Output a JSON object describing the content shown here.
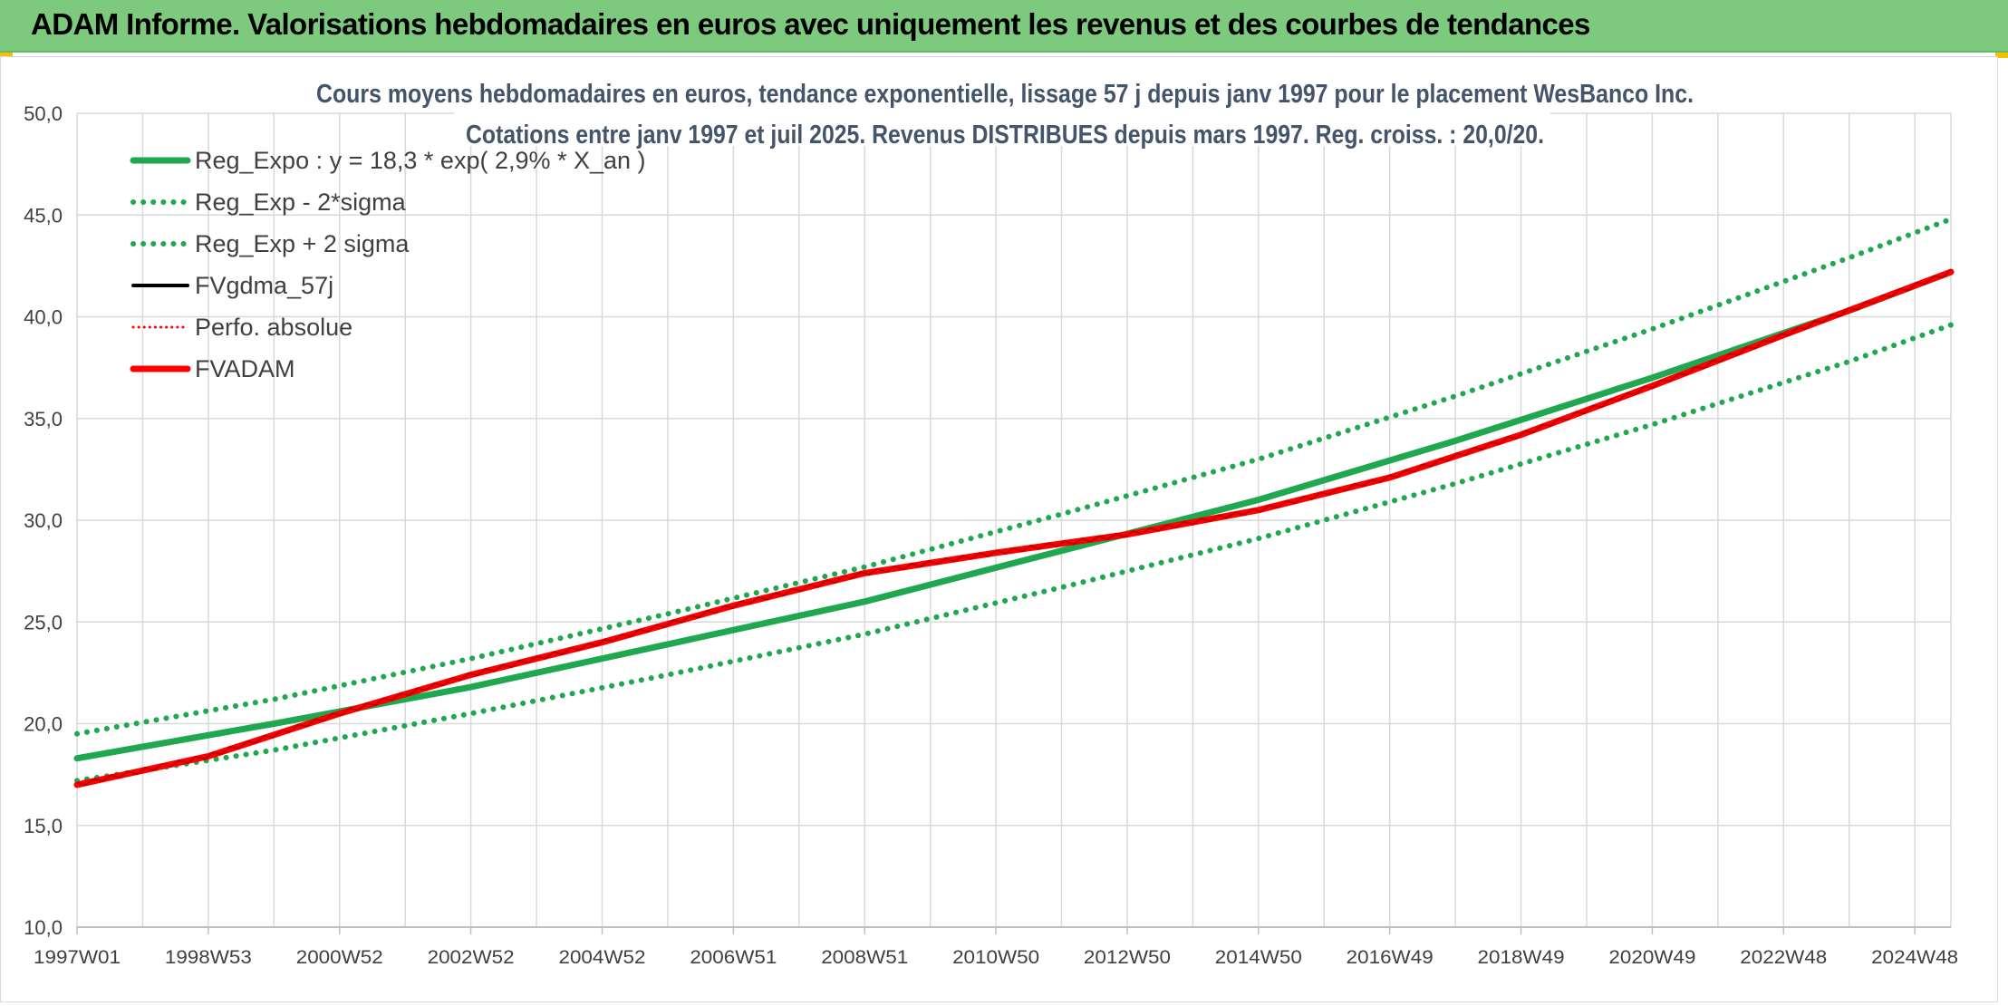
{
  "banner": {
    "title": "ADAM Informe. Valorisations hebdomadaires en euros avec uniquement les revenus et des courbes de tendances"
  },
  "colors": {
    "banner_bg": "#7dc97d",
    "reg_green": "#1fa84f",
    "red": "#ff0000",
    "black": "#000000",
    "grid": "#d9d9d9",
    "title_text": "#44546a",
    "axis_text": "#404040"
  },
  "chart_data": {
    "type": "line",
    "title_line1": "Cours moyens hebdomadaires en euros, tendance exponentielle, lissage 57 j depuis janv 1997 pour le placement WesBanco Inc.",
    "title_line2": "Cotations entre janv 1997 et juil 2025. Revenus DISTRIBUES depuis mars 1997. Reg. croiss. : 20,0/20.",
    "xlabel": "",
    "ylabel": "",
    "x_range": [
      1997.0,
      2025.55
    ],
    "ylim": [
      10,
      50
    ],
    "y_ticks": [
      "10,0",
      "15,0",
      "20,0",
      "25,0",
      "30,0",
      "35,0",
      "40,0",
      "45,0",
      "50,0"
    ],
    "x_ticks": [
      {
        "label": "1997W01",
        "year": 1997.0
      },
      {
        "label": "1998W53",
        "year": 1999.0
      },
      {
        "label": "2000W52",
        "year": 2001.0
      },
      {
        "label": "2002W52",
        "year": 2003.0
      },
      {
        "label": "2004W52",
        "year": 2005.0
      },
      {
        "label": "2006W51",
        "year": 2007.0
      },
      {
        "label": "2008W51",
        "year": 2009.0
      },
      {
        "label": "2010W50",
        "year": 2011.0
      },
      {
        "label": "2012W50",
        "year": 2013.0
      },
      {
        "label": "2014W50",
        "year": 2015.0
      },
      {
        "label": "2016W49",
        "year": 2017.0
      },
      {
        "label": "2018W49",
        "year": 2019.0
      },
      {
        "label": "2020W49",
        "year": 2021.0
      },
      {
        "label": "2022W48",
        "year": 2023.0
      },
      {
        "label": "2024W48",
        "year": 2025.0
      }
    ],
    "grid": true,
    "legend_position": "top-left",
    "legend": [
      {
        "label": "Reg_Expo : y = 18,3 * exp( 2,9% *  X_an )",
        "color": "#1fa84f",
        "style": "solid-thick"
      },
      {
        "label": "Reg_Exp - 2*sigma",
        "color": "#1fa84f",
        "style": "dotted"
      },
      {
        "label": "Reg_Exp + 2 sigma",
        "color": "#1fa84f",
        "style": "dotted"
      },
      {
        "label": "FVgdma_57j",
        "color": "#000000",
        "style": "solid"
      },
      {
        "label": "Perfo. absolue",
        "color": "#ff0000",
        "style": "dotted-thin"
      },
      {
        "label": "FVADAM",
        "color": "#ff0000",
        "style": "solid-thick"
      }
    ],
    "series": [
      {
        "name": "Reg_Expo : y = 18,3 * exp( 2,9% *  X_an )",
        "x": [
          1997.0,
          2000.0,
          2003.0,
          2006.0,
          2009.0,
          2012.0,
          2015.0,
          2018.0,
          2021.0,
          2024.0,
          2025.55
        ],
        "values": [
          18.3,
          20.0,
          21.8,
          23.9,
          26.0,
          28.5,
          31.0,
          33.9,
          37.0,
          40.3,
          42.2
        ]
      },
      {
        "name": "Reg_Exp - 2*sigma",
        "x": [
          1997.0,
          2000.0,
          2003.0,
          2006.0,
          2009.0,
          2012.0,
          2015.0,
          2018.0,
          2021.0,
          2024.0,
          2025.55
        ],
        "values": [
          17.2,
          18.7,
          20.5,
          22.4,
          24.4,
          26.7,
          29.1,
          31.8,
          34.7,
          37.8,
          39.6
        ]
      },
      {
        "name": "Reg_Exp + 2 sigma",
        "x": [
          1997.0,
          2000.0,
          2003.0,
          2006.0,
          2009.0,
          2012.0,
          2015.0,
          2018.0,
          2021.0,
          2024.0,
          2025.55
        ],
        "values": [
          19.5,
          21.2,
          23.2,
          25.4,
          27.7,
          30.3,
          33.0,
          36.1,
          39.4,
          42.9,
          44.8
        ]
      },
      {
        "name": "Perfo. absolue",
        "x": [
          1997.0,
          1999.0,
          2001.0,
          2003.0,
          2005.0,
          2007.0,
          2009.0,
          2011.0,
          2013.0,
          2015.0,
          2017.0,
          2019.0,
          2021.0,
          2023.0,
          2025.55
        ],
        "values": [
          17.0,
          18.4,
          20.5,
          22.4,
          24.0,
          25.8,
          27.4,
          28.4,
          29.3,
          30.5,
          32.1,
          34.2,
          36.6,
          39.1,
          42.2
        ]
      },
      {
        "name": "FVADAM",
        "x": [
          1997.0,
          1999.0,
          2001.0,
          2003.0,
          2005.0,
          2007.0,
          2009.0,
          2011.0,
          2013.0,
          2015.0,
          2017.0,
          2019.0,
          2021.0,
          2023.0,
          2025.55
        ],
        "values": [
          17.0,
          18.4,
          20.5,
          22.4,
          24.0,
          25.8,
          27.4,
          28.4,
          29.3,
          30.5,
          32.1,
          34.2,
          36.6,
          39.1,
          42.2
        ]
      }
    ]
  }
}
